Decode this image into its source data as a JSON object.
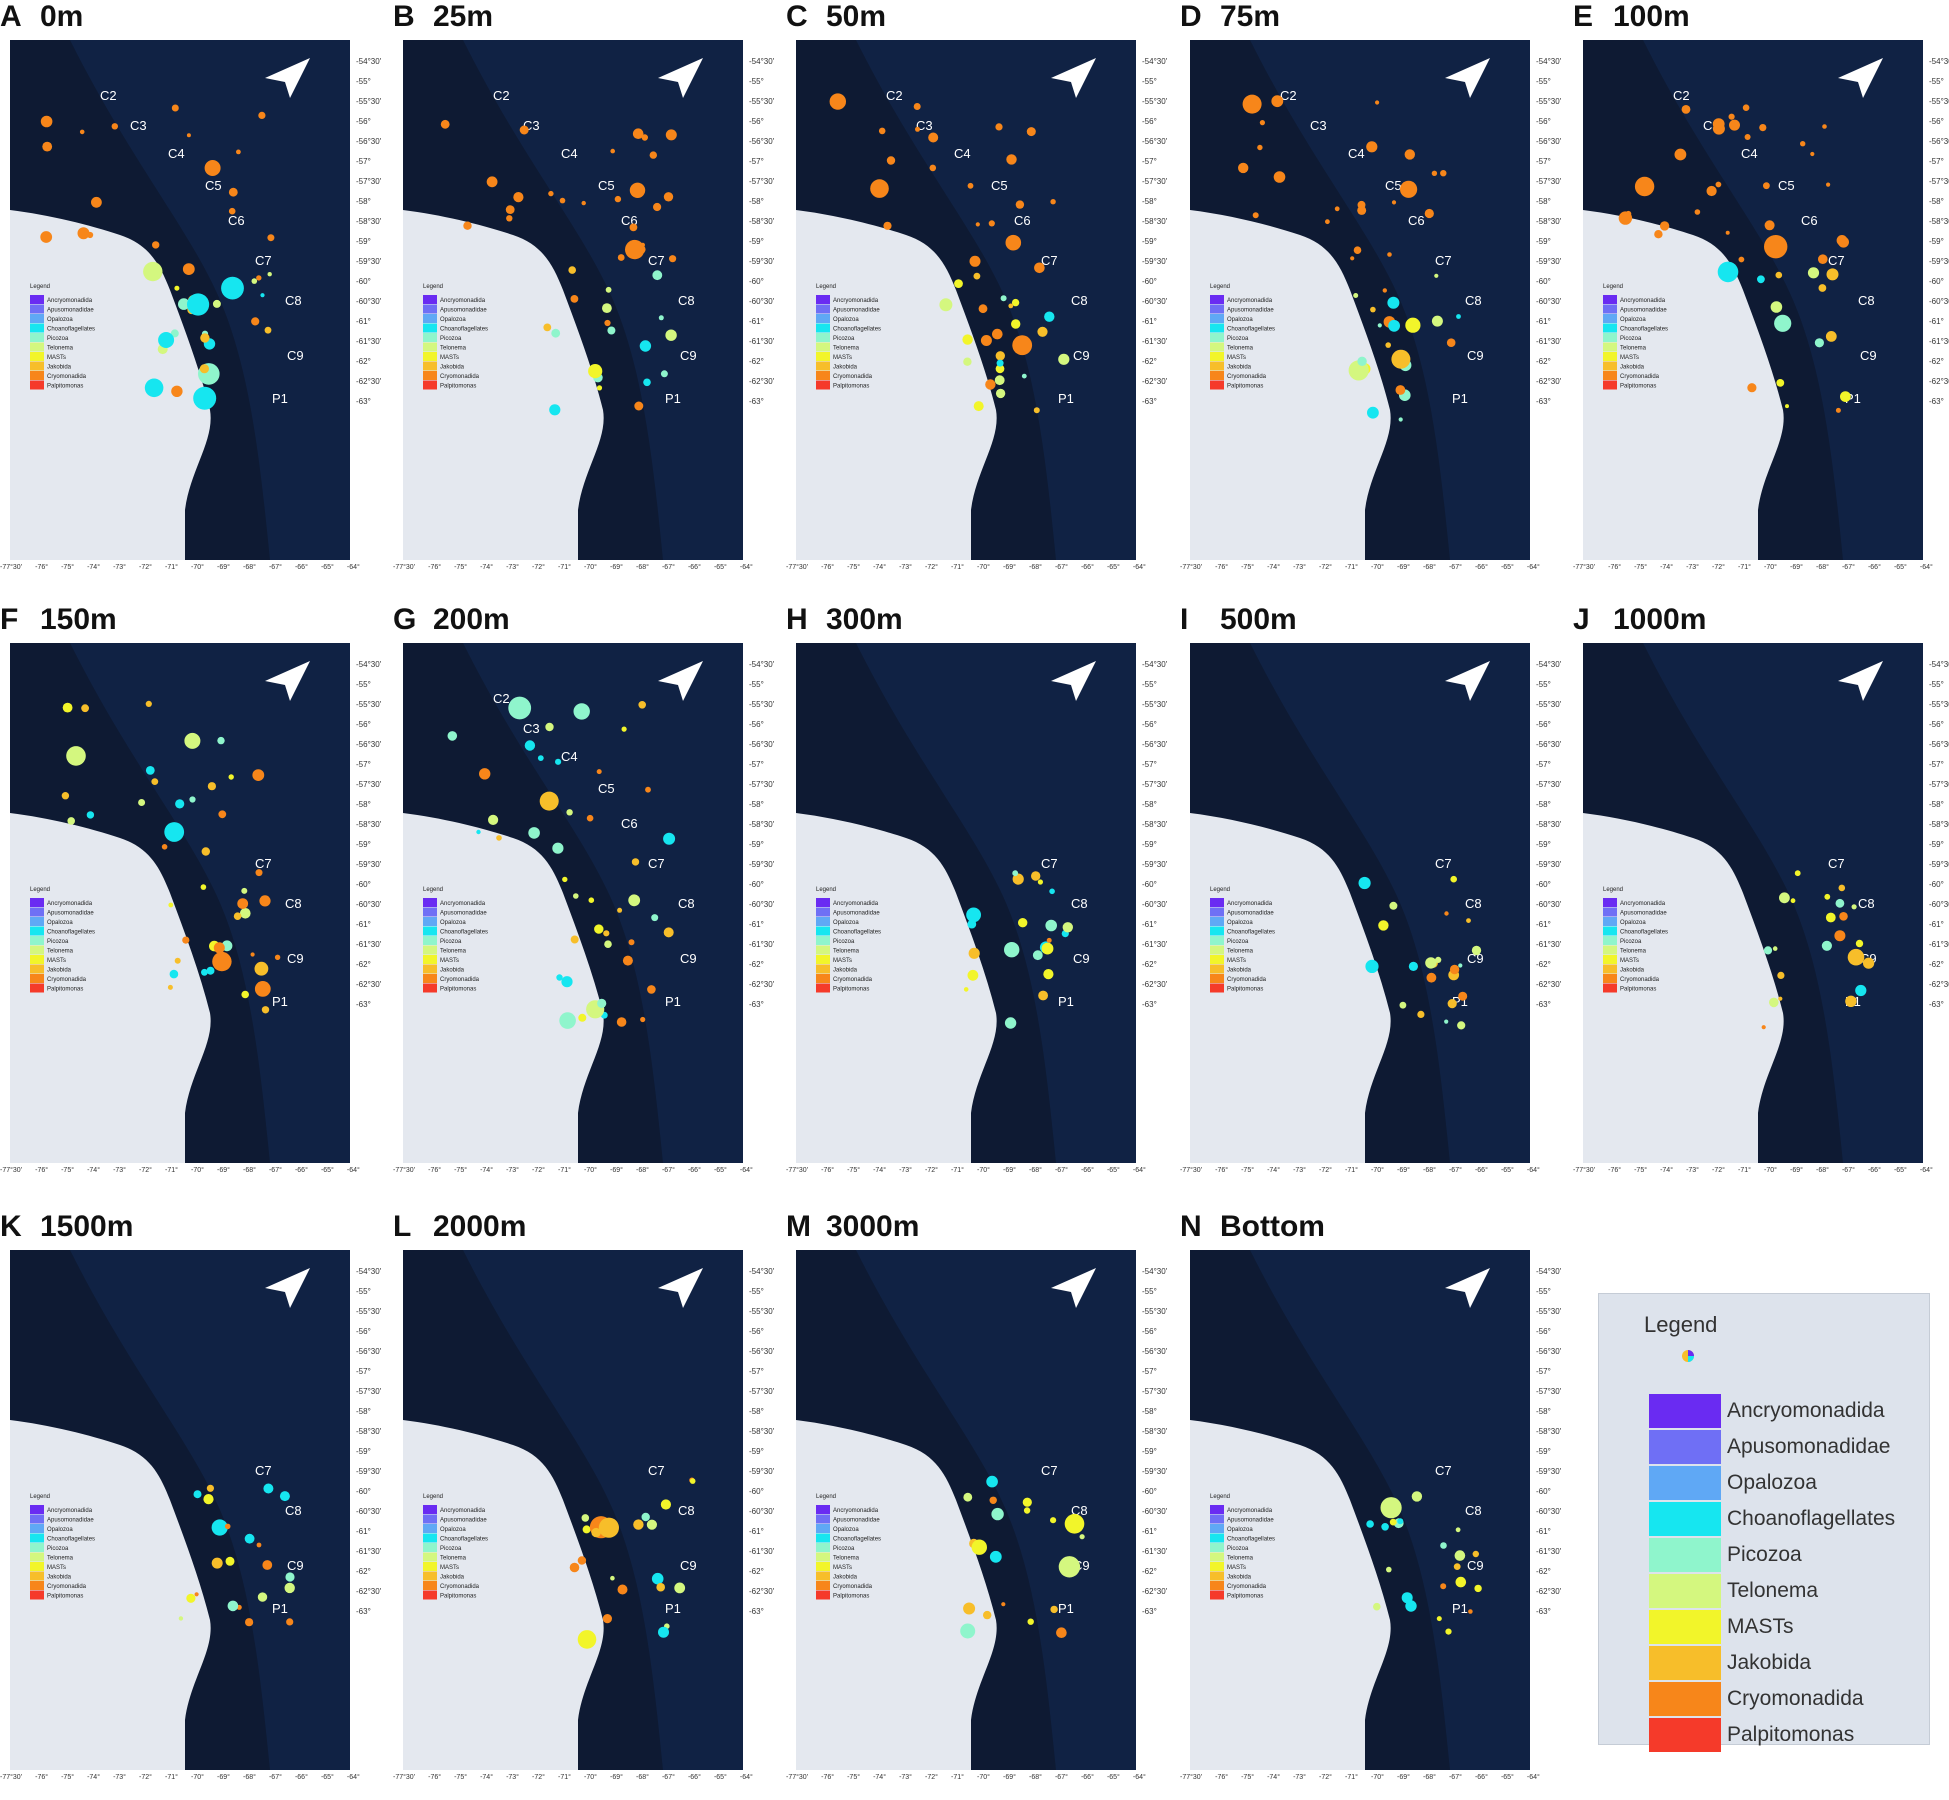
{
  "panels": [
    {
      "letter": "A",
      "title": "0m"
    },
    {
      "letter": "B",
      "title": "25m"
    },
    {
      "letter": "C",
      "title": "50m"
    },
    {
      "letter": "D",
      "title": "75m"
    },
    {
      "letter": "E",
      "title": "100m"
    },
    {
      "letter": "F",
      "title": "150m"
    },
    {
      "letter": "G",
      "title": "200m"
    },
    {
      "letter": "H",
      "title": "300m"
    },
    {
      "letter": "I",
      "title": "500m"
    },
    {
      "letter": "J",
      "title": "1000m"
    },
    {
      "letter": "K",
      "title": "1500m"
    },
    {
      "letter": "L",
      "title": "2000m"
    },
    {
      "letter": "M",
      "title": "3000m"
    },
    {
      "letter": "N",
      "title": "Bottom"
    }
  ],
  "transect_labels": [
    "C2",
    "C3",
    "C4",
    "C5",
    "C6",
    "C7",
    "C8",
    "C9",
    "P1"
  ],
  "lat_ticks": [
    "-54°30'",
    "-55°",
    "-55°30'",
    "-56°",
    "-56°30'",
    "-57°",
    "-57°30'",
    "-58°",
    "-58°30'",
    "-59°",
    "-59°30'",
    "-60°",
    "-60°30'",
    "-61°",
    "-61°30'",
    "-62°",
    "-62°30'",
    "-63°"
  ],
  "lon_ticks": [
    "-77°30'",
    "-76°",
    "-75°",
    "-74°",
    "-73°",
    "-72°",
    "-71°",
    "-70°",
    "-69°",
    "-68°",
    "-67°",
    "-66°",
    "-65°",
    "-64°"
  ],
  "legend": {
    "title": "Legend",
    "items": [
      {
        "name": "Ancryomonadida",
        "color": "#6a2bf2"
      },
      {
        "name": "Apusomonadidae",
        "color": "#6f6ff5"
      },
      {
        "name": "Opalozoa",
        "color": "#5fa8f5"
      },
      {
        "name": "Choanoflagellates",
        "color": "#16e6f0"
      },
      {
        "name": "Picozoa",
        "color": "#8ff5cc"
      },
      {
        "name": "Telonema",
        "color": "#d4f77f"
      },
      {
        "name": "MASTs",
        "color": "#f2f52a"
      },
      {
        "name": "Jakobida",
        "color": "#f7be2a"
      },
      {
        "name": "Cryomonadida",
        "color": "#f7861a"
      },
      {
        "name": "Palpitomonas",
        "color": "#f53a2a"
      }
    ]
  },
  "colors": {
    "ocean": "#0e1a33",
    "land": "#e4e8ef",
    "deep_ocean": "#132a52"
  }
}
